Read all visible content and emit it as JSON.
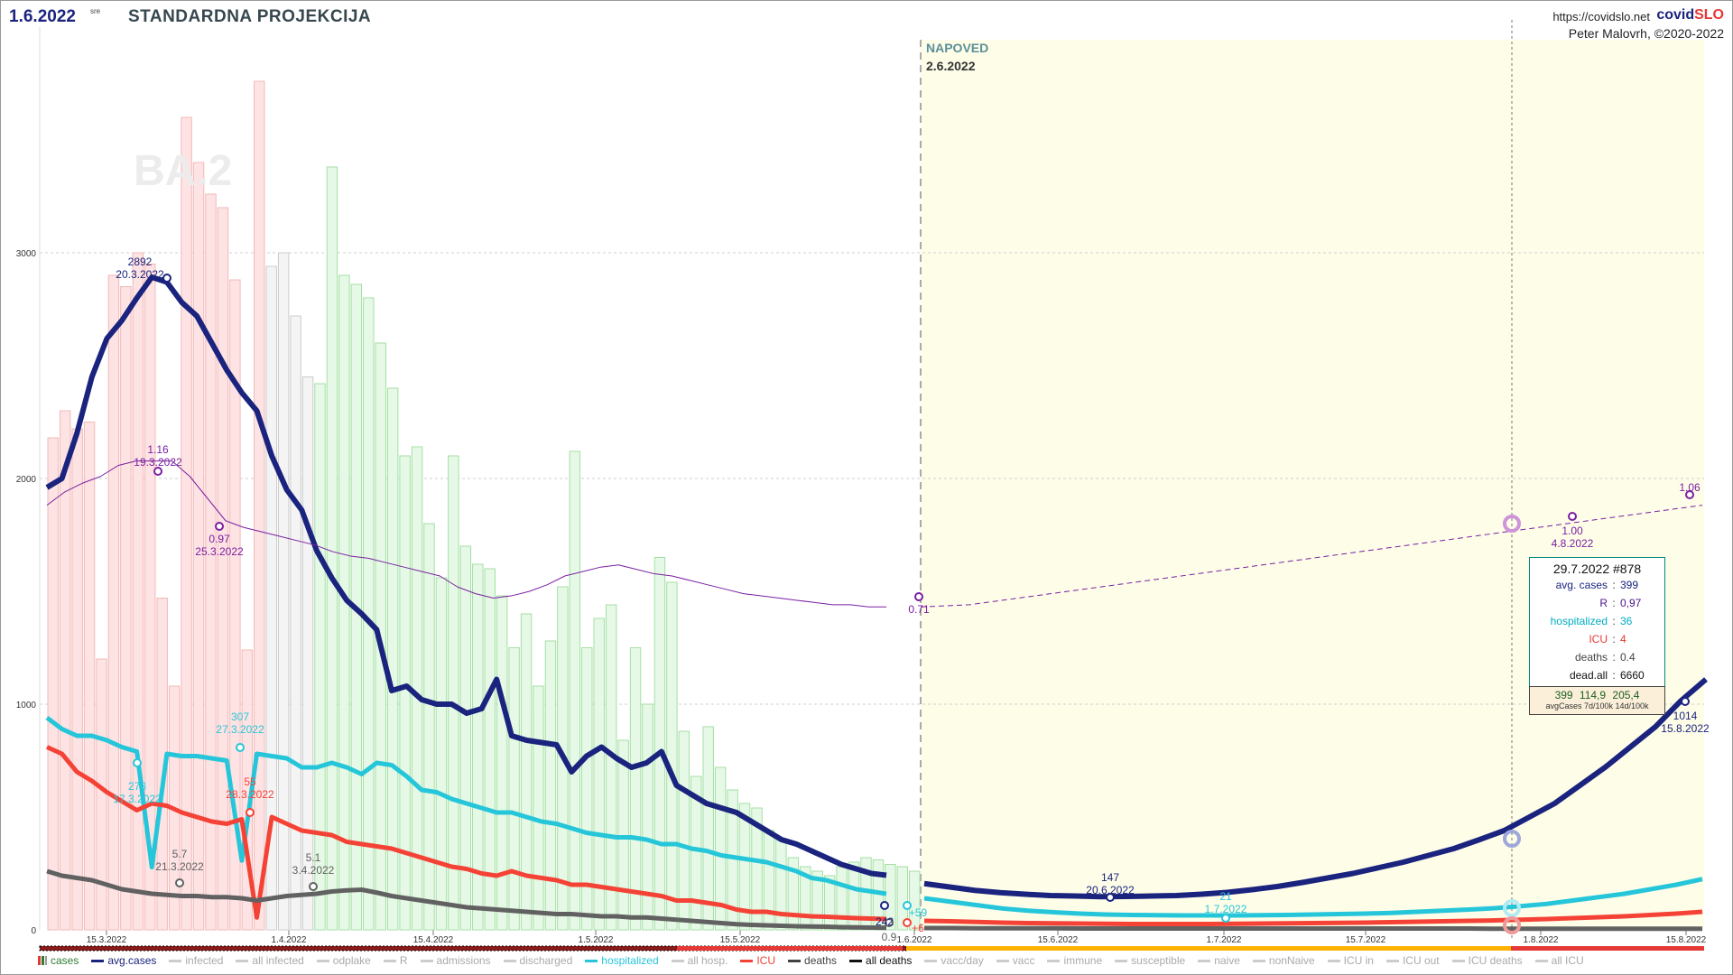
{
  "header": {
    "date": "1.6.2022",
    "date_sub": "sre",
    "title": "STANDARDNA PROJEKCIJA",
    "url": "https://covidslo.net",
    "brand_main": "covid",
    "brand_accent": "SLO",
    "author": "Peter Malovrh, ©2020-2022"
  },
  "forecast": {
    "label": "NAPOVED",
    "date": "2.6.2022"
  },
  "watermark": "BA.2",
  "chart_data": {
    "type": "line",
    "x_start": "9.3.2022",
    "x_end": "18.8.2022",
    "ylim": [
      0,
      4000
    ],
    "yticks": [
      0,
      1000,
      2000,
      3000
    ],
    "xticks": [
      "15.3.2022",
      "1.4.2022",
      "15.4.2022",
      "1.5.2022",
      "15.5.2022",
      "1.6.2022",
      "15.6.2022",
      "1.7.2022",
      "15.7.2022",
      "1.8.2022",
      "15.8.2022"
    ],
    "series": [
      {
        "name": "avg.cases",
        "color": "#1a237e",
        "values": [
          1960,
          2000,
          2200,
          2450,
          2620,
          2700,
          2800,
          2892,
          2870,
          2780,
          2720,
          2600,
          2480,
          2380,
          2300,
          2100,
          1950,
          1860,
          1680,
          1560,
          1460,
          1400,
          1330,
          1060,
          1080,
          1020,
          1000,
          1000,
          960,
          980,
          1110,
          860,
          840,
          830,
          820,
          700,
          770,
          810,
          760,
          720,
          740,
          790,
          640,
          600,
          560,
          540,
          520,
          480,
          440,
          400,
          380,
          350,
          320,
          290,
          270,
          250,
          242
        ],
        "forecast": [
          205,
          190,
          175,
          165,
          158,
          152,
          150,
          147,
          148,
          150,
          152,
          158,
          166,
          178,
          192,
          210,
          230,
          250,
          275,
          300,
          330,
          360,
          399,
          440,
          500,
          560,
          640,
          720,
          810,
          900,
          1014,
          1110
        ]
      },
      {
        "name": "hospitalized",
        "color": "#26c6da",
        "values": [
          940,
          890,
          860,
          860,
          840,
          810,
          790,
          278,
          780,
          770,
          770,
          760,
          750,
          307,
          780,
          770,
          760,
          720,
          720,
          740,
          720,
          690,
          740,
          730,
          680,
          620,
          610,
          580,
          560,
          540,
          520,
          520,
          500,
          480,
          470,
          450,
          430,
          420,
          410,
          410,
          400,
          380,
          380,
          360,
          350,
          330,
          320,
          310,
          300,
          280,
          260,
          230,
          220,
          200,
          180,
          170,
          160
        ],
        "forecast": [
          140,
          125,
          110,
          95,
          85,
          78,
          72,
          68,
          66,
          65,
          64,
          64,
          64,
          65,
          66,
          68,
          70,
          72,
          75,
          80,
          85,
          90,
          96,
          105,
          115,
          130,
          145,
          160,
          180,
          200,
          225
        ]
      },
      {
        "name": "ICU",
        "color": "#f44336",
        "values": [
          810,
          780,
          700,
          660,
          610,
          570,
          530,
          560,
          550,
          520,
          500,
          480,
          470,
          490,
          55,
          500,
          470,
          440,
          430,
          420,
          390,
          380,
          370,
          360,
          340,
          320,
          300,
          280,
          270,
          250,
          240,
          260,
          240,
          230,
          220,
          200,
          200,
          190,
          180,
          170,
          160,
          150,
          130,
          130,
          120,
          110,
          90,
          80,
          80,
          70,
          65,
          60,
          58,
          55,
          52,
          50,
          48
        ],
        "forecast": [
          40,
          38,
          35,
          32,
          30,
          29,
          28,
          27,
          26,
          26,
          26,
          26,
          27,
          28,
          29,
          30,
          31,
          32,
          34,
          36,
          38,
          40,
          42,
          45,
          48,
          52,
          56,
          60,
          66,
          72,
          80
        ]
      },
      {
        "name": "deaths",
        "color": "#616161",
        "values": [
          260,
          240,
          230,
          220,
          200,
          180,
          170,
          160,
          155,
          150,
          150,
          145,
          145,
          140,
          130,
          140,
          150,
          155,
          160,
          170,
          175,
          178,
          165,
          150,
          140,
          130,
          120,
          110,
          100,
          95,
          90,
          85,
          80,
          75,
          70,
          70,
          65,
          60,
          60,
          55,
          55,
          50,
          45,
          40,
          35,
          30,
          25,
          22,
          20,
          18,
          16,
          15,
          14,
          12,
          11,
          10,
          9
        ],
        "forecast": [
          8,
          8,
          7,
          7,
          7,
          7,
          6,
          6,
          6,
          6,
          6,
          6,
          6,
          6,
          6,
          6,
          6,
          6,
          6,
          6,
          6,
          6,
          5,
          5,
          5,
          5,
          5,
          5,
          5,
          5,
          5
        ]
      },
      {
        "name": "R",
        "color": "#7b1fa2",
        "values": [
          1.92,
          1.98,
          2.02,
          2.05,
          2.1,
          2.12,
          2.12,
          2.12,
          2.05,
          1.95,
          1.85,
          1.82,
          1.8,
          1.78,
          1.76,
          1.74,
          1.71,
          1.69,
          1.68,
          1.66,
          1.64,
          1.62,
          1.6,
          1.55,
          1.52,
          1.5,
          1.51,
          1.53,
          1.56,
          1.6,
          1.62,
          1.64,
          1.65,
          1.63,
          1.61,
          1.6,
          1.58,
          1.56,
          1.54,
          1.52,
          1.51,
          1.5,
          1.49,
          1.48,
          1.47,
          1.47,
          1.46,
          1.46
        ],
        "forecast": [
          1.46,
          1.47,
          1.5,
          1.53,
          1.56,
          1.59,
          1.62,
          1.65,
          1.68,
          1.71,
          1.74,
          1.77,
          1.8,
          1.83,
          1.86,
          1.89,
          1.92
        ]
      }
    ],
    "cases_bars": [
      2180,
      2300,
      2220,
      2250,
      1200,
      2900,
      2850,
      3000,
      2950,
      1470,
      1080,
      3600,
      3400,
      3260,
      3200,
      2880,
      1240,
      3760,
      2940,
      3000,
      2720,
      2450,
      2420,
      3380,
      2900,
      2860,
      2800,
      2600,
      2400,
      2100,
      2140,
      1800,
      1560,
      2100,
      1700,
      1620,
      1600,
      1480,
      1250,
      1400,
      1080,
      1280,
      1520,
      2120,
      1250,
      1380,
      1440,
      840,
      1250,
      1000,
      1650,
      1540,
      880,
      680,
      900,
      720,
      620,
      560,
      540,
      440,
      400,
      320,
      280,
      260,
      240,
      280,
      300,
      320,
      310,
      290,
      280,
      260
    ],
    "annotations": [
      {
        "label": "2892",
        "sub": "20.3.2022",
        "series": "avg.cases"
      },
      {
        "label": "278",
        "sub": "17.3.2022",
        "series": "hospitalized"
      },
      {
        "label": "307",
        "sub": "27.3.2022",
        "series": "hospitalized"
      },
      {
        "label": "55",
        "sub": "28.3.2022",
        "series": "ICU"
      },
      {
        "label": "5.7",
        "sub": "21.3.2022",
        "series": "deaths"
      },
      {
        "label": "5.1",
        "sub": "3.4.2022",
        "series": "deaths"
      },
      {
        "label": "1.16",
        "sub": "19.3.2022",
        "series": "R"
      },
      {
        "label": "0.97",
        "sub": "25.3.2022",
        "series": "R"
      },
      {
        "label": "0.71",
        "sub": "",
        "series": "R"
      },
      {
        "label": "1.00",
        "sub": "4.8.2022",
        "series": "R"
      },
      {
        "label": "1.06",
        "sub": "",
        "series": "R"
      },
      {
        "label": "242",
        "sub": "",
        "series": "avg.cases"
      },
      {
        "label": "147",
        "sub": "20.6.2022",
        "series": "avg.cases"
      },
      {
        "label": "21",
        "sub": "1.7.2022",
        "series": "hospitalized"
      },
      {
        "label": "1014",
        "sub": "15.8.2022",
        "series": "avg.cases"
      },
      {
        "label": "+59",
        "sub": "",
        "series": "hospitalized"
      },
      {
        "label": "+6",
        "sub": "",
        "series": "ICU"
      },
      {
        "label": "0.9",
        "sub": "",
        "series": "deaths"
      }
    ]
  },
  "infobox": {
    "head": "29.7.2022 #878",
    "rows": [
      {
        "k": "avg. cases",
        "v": "399",
        "color": "#1a237e"
      },
      {
        "k": "R",
        "v": "0,97",
        "color": "#4a148c"
      },
      {
        "k": "hospitalized",
        "v": "36",
        "color": "#00acc1"
      },
      {
        "k": "ICU",
        "v": "4",
        "color": "#e53935"
      },
      {
        "k": "deaths",
        "v": "0.4",
        "color": "#444444"
      },
      {
        "k": "dead.all",
        "v": "6660",
        "color": "#111111"
      }
    ],
    "footer_nums": "399  114,9  205,4",
    "footer_caption": "avgCases 7d/100k 14d/100k"
  },
  "legend": [
    {
      "label": "cases",
      "color": "#2e7d32",
      "active": true,
      "bars": true
    },
    {
      "label": "avg.cases",
      "color": "#1a237e",
      "active": true
    },
    {
      "label": "infected",
      "color": "#bbbbbb",
      "active": false
    },
    {
      "label": "all infected",
      "color": "#bbbbbb",
      "active": false
    },
    {
      "label": "odplake",
      "color": "#bbbbbb",
      "active": false
    },
    {
      "label": "R",
      "color": "#7b1fa2",
      "active": false
    },
    {
      "label": "admissions",
      "color": "#bbbbbb",
      "active": false
    },
    {
      "label": "discharged",
      "color": "#bbbbbb",
      "active": false
    },
    {
      "label": "hospitalized",
      "color": "#26c6da",
      "active": true
    },
    {
      "label": "all hosp.",
      "color": "#bbbbbb",
      "active": false
    },
    {
      "label": "ICU",
      "color": "#f44336",
      "active": true
    },
    {
      "label": "deaths",
      "color": "#424242",
      "active": true
    },
    {
      "label": "all deaths",
      "color": "#111111",
      "active": true
    },
    {
      "label": "vacc/day",
      "color": "#bbbbbb",
      "active": false
    },
    {
      "label": "vacc",
      "color": "#bbbbbb",
      "active": false
    },
    {
      "label": "immune",
      "color": "#bbbbbb",
      "active": false
    },
    {
      "label": "susceptible",
      "color": "#bbbbbb",
      "active": false
    },
    {
      "label": "naive",
      "color": "#bbbbbb",
      "active": false
    },
    {
      "label": "nonNaive",
      "color": "#bbbbbb",
      "active": false
    },
    {
      "label": "ICU in",
      "color": "#bbbbbb",
      "active": false
    },
    {
      "label": "ICU out",
      "color": "#bbbbbb",
      "active": false
    },
    {
      "label": "ICU deaths",
      "color": "#bbbbbb",
      "active": false
    },
    {
      "label": "all ICU",
      "color": "#bbbbbb",
      "active": false
    }
  ]
}
